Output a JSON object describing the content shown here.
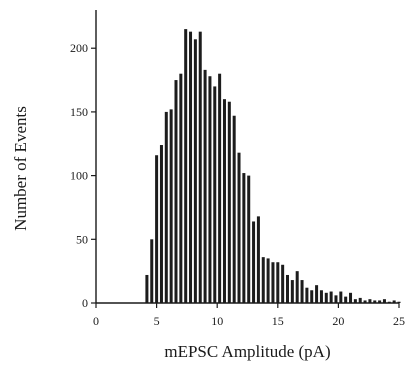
{
  "chart_data": {
    "type": "bar",
    "title": "",
    "xlabel": "mEPSC Amplitude (pA)",
    "ylabel": "Number of Events",
    "xlim": [
      0,
      25
    ],
    "ylim": [
      0,
      230
    ],
    "x_ticks": [
      0,
      5,
      10,
      15,
      20,
      25
    ],
    "y_ticks": [
      0,
      50,
      100,
      150,
      200
    ],
    "grid": false,
    "legend": "none",
    "bin_width": 0.4,
    "bar_color": "#1c1c1c",
    "x": [
      4.2,
      4.6,
      5.0,
      5.4,
      5.8,
      6.2,
      6.6,
      7.0,
      7.4,
      7.8,
      8.2,
      8.6,
      9.0,
      9.4,
      9.8,
      10.2,
      10.6,
      11.0,
      11.4,
      11.8,
      12.2,
      12.6,
      13.0,
      13.4,
      13.8,
      14.2,
      14.6,
      15.0,
      15.4,
      15.8,
      16.2,
      16.6,
      17.0,
      17.4,
      17.8,
      18.2,
      18.6,
      19.0,
      19.4,
      19.8,
      20.2,
      20.6,
      21.0,
      21.4,
      21.8,
      22.2,
      22.6,
      23.0,
      23.4,
      23.8,
      24.2,
      24.6,
      25.0
    ],
    "values": [
      22,
      50,
      116,
      124,
      150,
      152,
      175,
      180,
      215,
      213,
      207,
      213,
      183,
      178,
      170,
      180,
      160,
      158,
      147,
      118,
      102,
      100,
      64,
      68,
      36,
      35,
      32,
      32,
      30,
      22,
      18,
      25,
      18,
      12,
      10,
      14,
      10,
      8,
      9,
      6,
      9,
      5,
      8,
      3,
      4,
      2,
      3,
      2,
      2,
      3,
      1,
      2,
      1
    ]
  }
}
